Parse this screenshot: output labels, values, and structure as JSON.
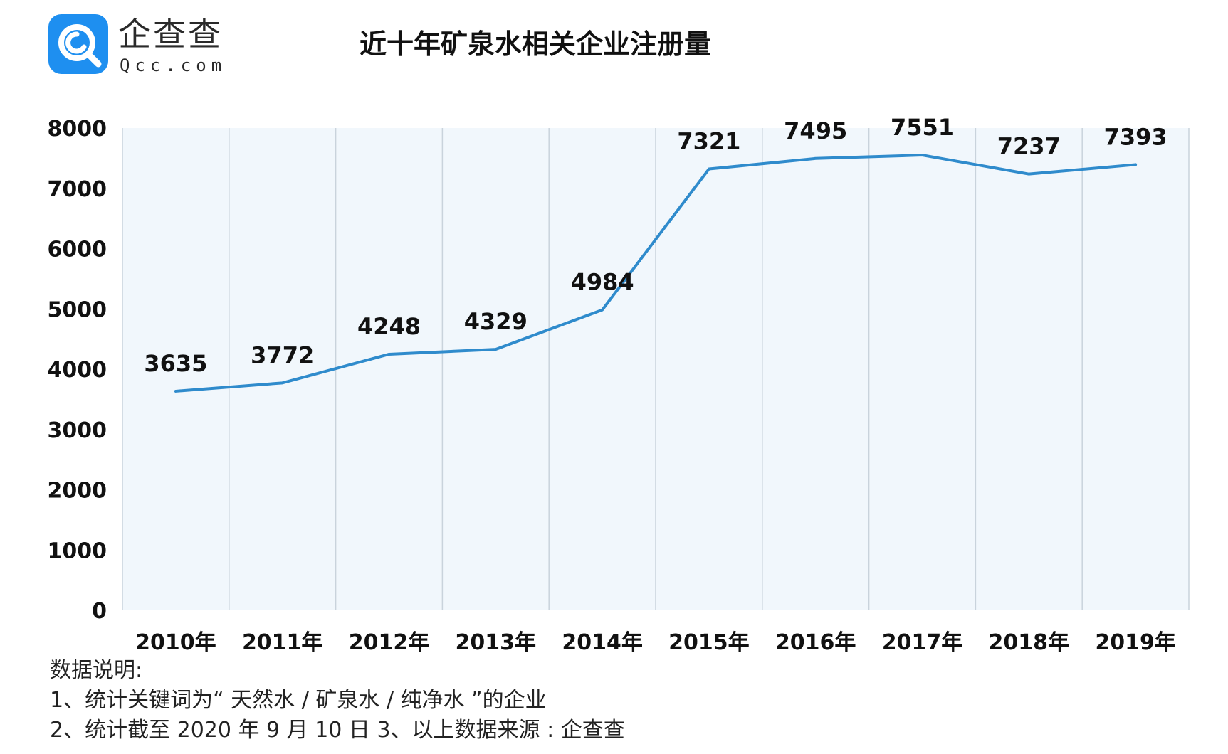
{
  "logo": {
    "name": "企查查",
    "domain": "Qcc.com",
    "badge_color": "#1e8ff0"
  },
  "notes": {
    "heading": "数据说明:",
    "line1": "1、统计关键词为“ 天然水 / 矿泉水 / 纯净水 ”的企业",
    "line2": "2、统计截至 2020 年 9 月 10 日  3、以上数据来源 : 企查查"
  },
  "chart_data": {
    "type": "line",
    "title": "近十年矿泉水相关企业注册量",
    "xlabel": "",
    "ylabel": "",
    "categories": [
      "2010年",
      "2011年",
      "2012年",
      "2013年",
      "2014年",
      "2015年",
      "2016年",
      "2017年",
      "2018年",
      "2019年"
    ],
    "series": [
      {
        "values": [
          3635,
          3772,
          4248,
          4329,
          4984,
          7321,
          7495,
          7551,
          7237,
          7393
        ]
      }
    ],
    "ylim": [
      0,
      8000
    ],
    "yticks": [
      0,
      1000,
      2000,
      3000,
      4000,
      5000,
      6000,
      7000,
      8000
    ],
    "grid": "vertical",
    "data_labels": true,
    "colors": {
      "line": "#2f8bcc",
      "plot_background": "#f1f7fc",
      "grid": "#c9d3dc"
    }
  }
}
